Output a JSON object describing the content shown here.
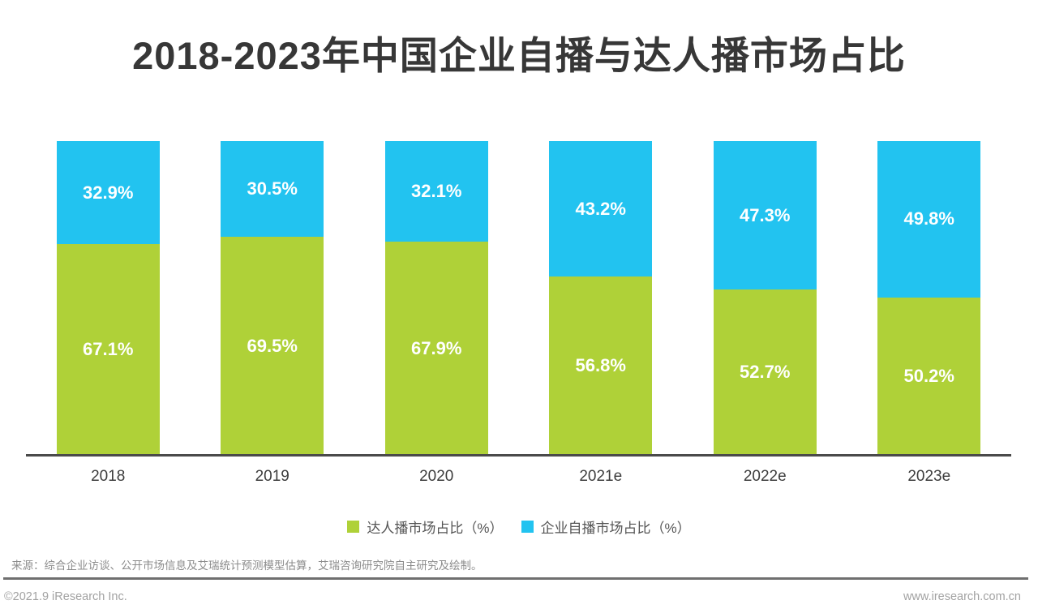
{
  "title": "2018-2023年中国企业自播与达人播市场占比",
  "source_note": "来源：综合企业访谈、公开市场信息及艾瑞统计预测模型估算，艾瑞咨询研究院自主研究及绘制。",
  "footer": {
    "copyright": "©2021.9 iResearch Inc.",
    "website": "www.iresearch.com.cn"
  },
  "colors": {
    "green": "#afd138",
    "blue": "#22c3f0",
    "axis": "#4a4a4a"
  },
  "chart_data": {
    "type": "bar",
    "stacked": true,
    "title": "2018-2023年中国企业自播与达人播市场占比",
    "categories": [
      "2018",
      "2019",
      "2020",
      "2021e",
      "2022e",
      "2023e"
    ],
    "series": [
      {
        "name": "达人播市场占比（%）",
        "color": "#afd138",
        "stack_position": "bottom",
        "values": [
          67.1,
          69.5,
          67.9,
          56.8,
          52.7,
          50.2
        ]
      },
      {
        "name": "企业自播市场占比（%）",
        "color": "#22c3f0",
        "stack_position": "top",
        "values": [
          32.9,
          30.5,
          32.1,
          43.2,
          47.3,
          49.8
        ]
      }
    ],
    "ylim": [
      0,
      100
    ],
    "value_suffix": "%",
    "value_labels": "inside-center",
    "legend_position": "bottom",
    "grid": false,
    "xlabel": "",
    "ylabel": ""
  }
}
